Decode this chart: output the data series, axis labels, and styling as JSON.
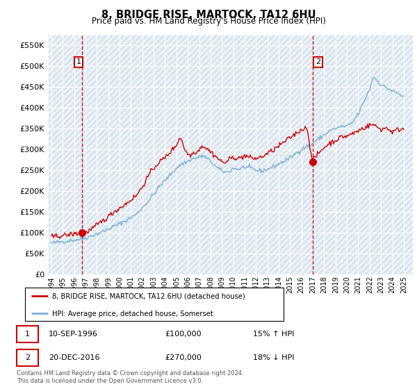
{
  "title": "8, BRIDGE RISE, MARTOCK, TA12 6HU",
  "subtitle": "Price paid vs. HM Land Registry's House Price Index (HPI)",
  "ylabel_ticks": [
    "£0",
    "£50K",
    "£100K",
    "£150K",
    "£200K",
    "£250K",
    "£300K",
    "£350K",
    "£400K",
    "£450K",
    "£500K",
    "£550K"
  ],
  "ytick_vals": [
    0,
    50000,
    100000,
    150000,
    200000,
    250000,
    300000,
    350000,
    400000,
    450000,
    500000,
    550000
  ],
  "ylim": [
    0,
    575000
  ],
  "xlim_start": 1993.7,
  "xlim_end": 2025.8,
  "purchase1_date": 1996.69,
  "purchase1_price": 100000,
  "purchase2_date": 2016.97,
  "purchase2_price": 270000,
  "legend_line1": "8, BRIDGE RISE, MARTOCK, TA12 6HU (detached house)",
  "legend_line2": "HPI: Average price, detached house, Somerset",
  "table_row1": [
    "1",
    "10-SEP-1996",
    "£100,000",
    "15% ↑ HPI"
  ],
  "table_row2": [
    "2",
    "20-DEC-2016",
    "£270,000",
    "18% ↓ HPI"
  ],
  "footnote": "Contains HM Land Registry data © Crown copyright and database right 2024.\nThis data is licensed under the Open Government Licence v3.0.",
  "hpi_color": "#7bafd4",
  "price_color": "#cc0000",
  "vline_color": "#cc0000",
  "bg_color": "#dce6f0"
}
